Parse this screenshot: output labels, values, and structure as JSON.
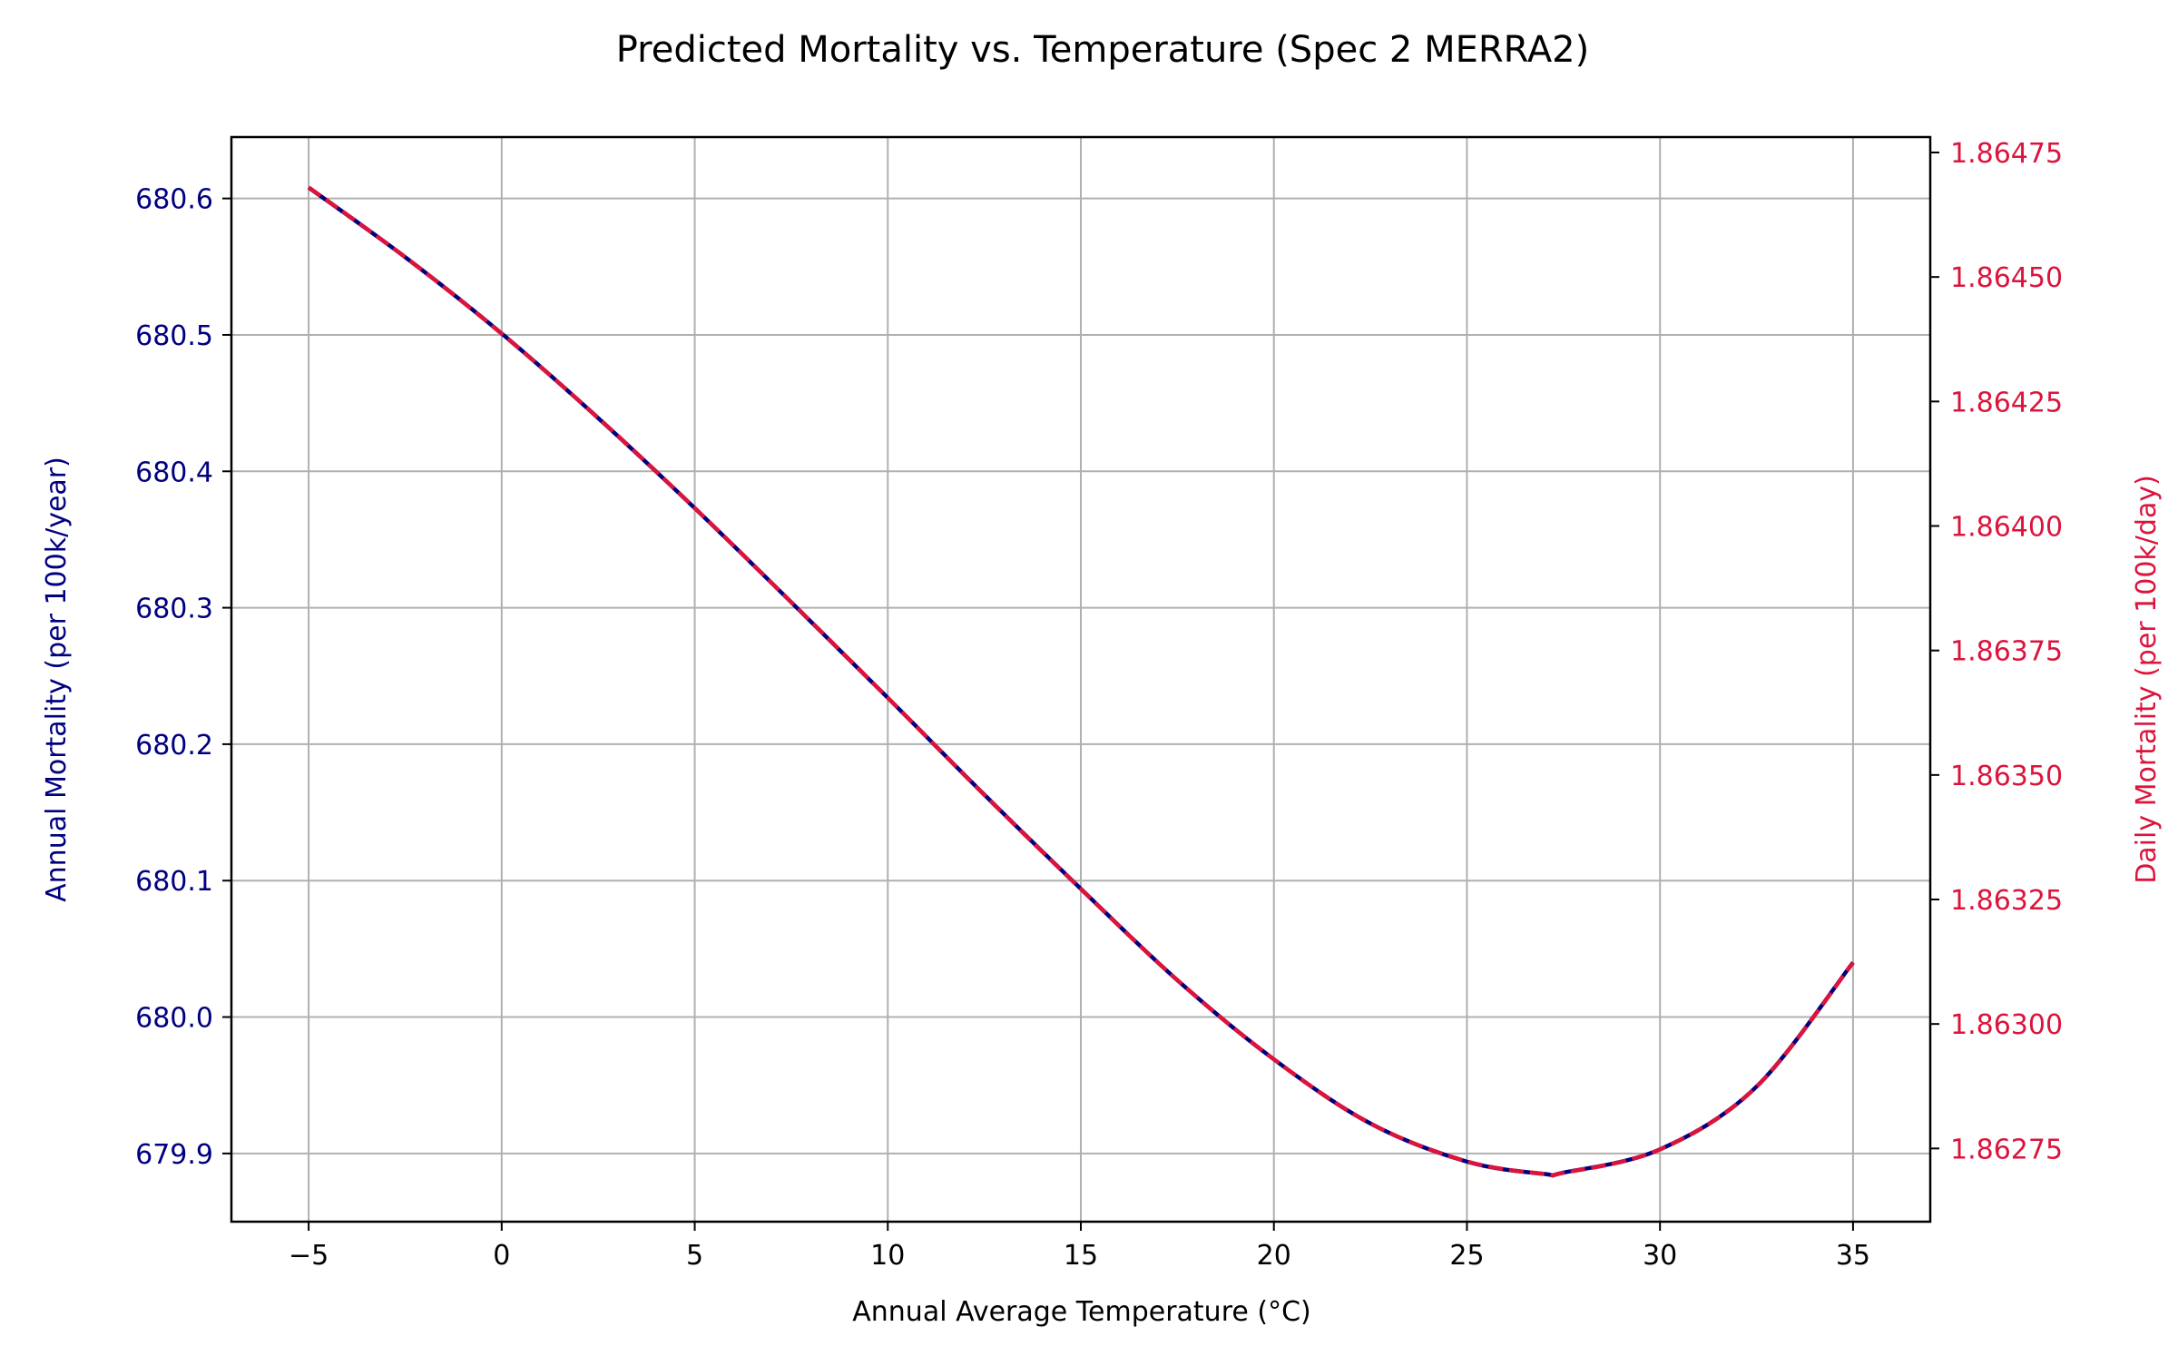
{
  "chart_data": {
    "type": "line",
    "title": "Predicted Mortality vs. Temperature (Spec 2 MERRA2)",
    "xlabel": "Annual Average Temperature (°C)",
    "ylabel": "Annual Mortality (per 100k/year)",
    "y2label": "Daily Mortality (per 100k/day)",
    "xlim": [
      -7,
      37
    ],
    "ylim": [
      679.85,
      680.645
    ],
    "y2lim": [
      1.862603,
      1.864781
    ],
    "grid": true,
    "x_ticks": [
      -5,
      0,
      5,
      10,
      15,
      20,
      25,
      30,
      35
    ],
    "x_tick_labels": [
      "−5",
      "0",
      "5",
      "10",
      "15",
      "20",
      "25",
      "30",
      "35"
    ],
    "y_ticks": [
      679.9,
      680.0,
      680.1,
      680.2,
      680.3,
      680.4,
      680.5,
      680.6
    ],
    "y_tick_labels": [
      "679.9",
      "680.0",
      "680.1",
      "680.2",
      "680.3",
      "680.4",
      "680.5",
      "680.6"
    ],
    "y2_ticks": [
      1.86275,
      1.863,
      1.86325,
      1.8635,
      1.86375,
      1.864,
      1.86425,
      1.8645,
      1.86475
    ],
    "y2_tick_labels": [
      "1.86275",
      "1.86300",
      "1.86325",
      "1.86350",
      "1.86375",
      "1.86400",
      "1.86425",
      "1.86450",
      "1.86475"
    ],
    "series": [
      {
        "axis": "left",
        "color": "#000080",
        "style": "solid",
        "x": [
          -5,
          -2.5,
          0,
          2.5,
          5,
          7.5,
          10,
          12.5,
          15,
          17.5,
          20,
          22.5,
          25,
          27,
          27.5,
          30,
          32.5,
          35
        ],
        "y": [
          680.608,
          680.557,
          680.501,
          680.439,
          680.373,
          680.304,
          680.234,
          680.163,
          680.094,
          680.027,
          679.969,
          679.922,
          679.894,
          679.885,
          679.886,
          679.903,
          679.949,
          680.04
        ]
      },
      {
        "axis": "right",
        "color": "#dc143c",
        "style": "dashed",
        "x": [
          -5,
          -2.5,
          0,
          2.5,
          5,
          7.5,
          10,
          12.5,
          15,
          17.5,
          20,
          22.5,
          25,
          27,
          27.5,
          30,
          32.5,
          35
        ],
        "y": [
          1.86468,
          1.86454,
          1.864386,
          1.864217,
          1.864036,
          1.863847,
          1.863655,
          1.86346,
          1.863271,
          1.863088,
          1.862929,
          1.8628,
          1.862724,
          1.862699,
          1.862701,
          1.862748,
          1.862874,
          1.863123
        ]
      }
    ],
    "colors": {
      "left_axis": "#000080",
      "right_axis": "#dc143c",
      "grid": "#b0b0b0"
    }
  }
}
